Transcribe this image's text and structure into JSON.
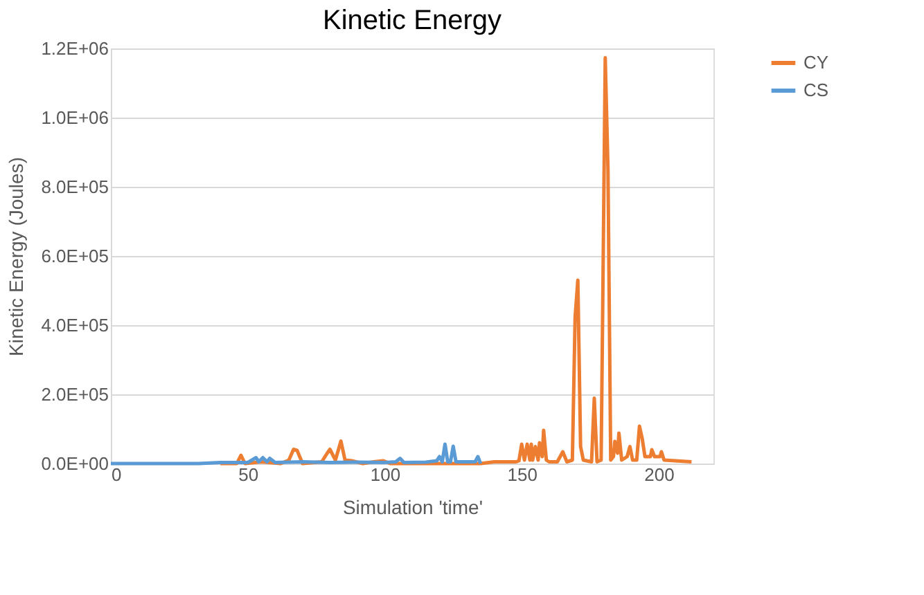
{
  "chart_data": {
    "type": "line",
    "title": "Kinetic Energy",
    "xlabel": "Simulation  'time'",
    "ylabel": "Kinetic Energy (Joules)",
    "xlim": [
      0,
      220
    ],
    "xticks": [
      0,
      50,
      100,
      150,
      200
    ],
    "ylim": [
      0,
      1200000
    ],
    "yticks": [
      {
        "value": 0,
        "label": "0.0E+00"
      },
      {
        "value": 200000,
        "label": "2.0E+05"
      },
      {
        "value": 400000,
        "label": "4.0E+05"
      },
      {
        "value": 600000,
        "label": "6.0E+05"
      },
      {
        "value": 800000,
        "label": "8.0E+05"
      },
      {
        "value": 1000000,
        "label": "1.0E+06"
      },
      {
        "value": 1200000,
        "label": "1.2E+06"
      }
    ],
    "grid": "y",
    "legend": "right",
    "marker": "none",
    "line_style": "solid",
    "series": [
      {
        "name": "CY",
        "color": "#ed7d31",
        "x": [
          40,
          46,
          47.5,
          49,
          55,
          62,
          65,
          66.7,
          68,
          70,
          77,
          79,
          80,
          82,
          84,
          85.5,
          88,
          92,
          96,
          99.5,
          102,
          135,
          140,
          148,
          149,
          150,
          151,
          152,
          153,
          153.5,
          154,
          155,
          156,
          156.5,
          157.5,
          158,
          159,
          160,
          163,
          165,
          166.5,
          168.5,
          169.5,
          170.5,
          171.5,
          172.5,
          175.5,
          176.5,
          177.5,
          179,
          179.5,
          180.5,
          181.5,
          182.5,
          183.5,
          184,
          185,
          185.5,
          186.5,
          188.5,
          189.5,
          190.5,
          192,
          193,
          194,
          195,
          197,
          197.5,
          198.5,
          200.5,
          201,
          202,
          212
        ],
        "values": [
          0,
          0,
          24000,
          0,
          5000,
          0,
          10000,
          41000,
          38000,
          0,
          5000,
          30000,
          41000,
          10000,
          65000,
          10000,
          8000,
          0,
          5000,
          8000,
          0,
          0,
          5000,
          5000,
          8000,
          56000,
          10000,
          56000,
          10000,
          56000,
          10000,
          49000,
          10000,
          60000,
          20000,
          96000,
          10000,
          5000,
          5000,
          34000,
          5000,
          10000,
          423000,
          530000,
          49000,
          10000,
          5000,
          189000,
          5000,
          10000,
          390000,
          1173000,
          851000,
          10000,
          20000,
          64000,
          30000,
          88000,
          10000,
          20000,
          49000,
          10000,
          10000,
          108000,
          72000,
          20000,
          20000,
          40000,
          20000,
          20000,
          34000,
          10000,
          5000
        ]
      },
      {
        "name": "CS",
        "color": "#5b9bd5",
        "x": [
          0,
          32,
          40,
          50,
          53,
          54,
          55.5,
          57,
          58,
          60,
          70,
          80,
          90,
          100,
          104,
          105.6,
          107,
          115,
          119,
          120,
          121,
          122,
          123,
          124,
          125,
          126,
          128,
          133,
          134,
          135
        ],
        "values": [
          0,
          0,
          3000,
          3000,
          17000,
          5000,
          17000,
          5000,
          15000,
          3000,
          5000,
          3000,
          4000,
          3000,
          5000,
          15000,
          3000,
          4000,
          8000,
          20000,
          5000,
          56000,
          5000,
          5000,
          50000,
          5000,
          5000,
          5000,
          20000,
          0
        ]
      }
    ]
  }
}
